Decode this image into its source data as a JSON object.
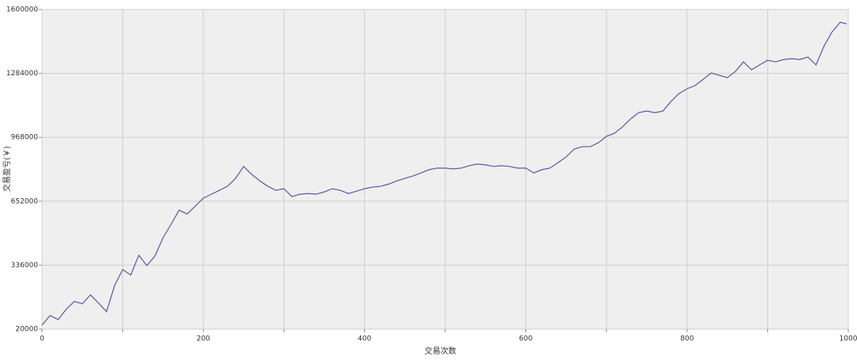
{
  "chart_data": {
    "type": "line",
    "x_label": "交易次数",
    "y_label": "交易盈亏(￥)",
    "x": [
      0,
      10,
      20,
      30,
      40,
      50,
      60,
      70,
      80,
      90,
      100,
      110,
      120,
      130,
      140,
      150,
      160,
      170,
      180,
      190,
      200,
      210,
      220,
      230,
      240,
      250,
      260,
      270,
      280,
      290,
      300,
      310,
      320,
      330,
      340,
      350,
      360,
      370,
      380,
      390,
      400,
      410,
      420,
      430,
      440,
      450,
      460,
      470,
      480,
      490,
      500,
      510,
      520,
      530,
      540,
      550,
      560,
      570,
      580,
      590,
      600,
      610,
      620,
      630,
      640,
      650,
      660,
      670,
      680,
      690,
      700,
      710,
      720,
      730,
      740,
      750,
      760,
      770,
      780,
      790,
      800,
      810,
      820,
      830,
      840,
      850,
      860,
      870,
      880,
      890,
      900,
      910,
      920,
      930,
      940,
      950,
      960,
      970,
      980,
      990,
      998
    ],
    "series": [
      {
        "color": "#5a58a6",
        "values": [
          40000,
          87000,
          67000,
          118000,
          157000,
          145000,
          189000,
          149000,
          106000,
          236000,
          314000,
          287000,
          385000,
          334000,
          381000,
          471000,
          538000,
          608000,
          589000,
          628000,
          667000,
          687000,
          706000,
          726000,
          765000,
          824000,
          785000,
          753000,
          726000,
          706000,
          714000,
          675000,
          687000,
          690000,
          687000,
          698000,
          714000,
          706000,
          690000,
          702000,
          714000,
          722000,
          726000,
          737000,
          753000,
          765000,
          777000,
          792000,
          808000,
          816000,
          816000,
          812000,
          816000,
          828000,
          836000,
          832000,
          824000,
          828000,
          824000,
          816000,
          816000,
          792000,
          808000,
          816000,
          843000,
          871000,
          910000,
          922000,
          922000,
          941000,
          973000,
          988000,
          1020000,
          1059000,
          1090000,
          1098000,
          1090000,
          1098000,
          1145000,
          1184000,
          1208000,
          1224000,
          1255000,
          1286000,
          1275000,
          1263000,
          1294000,
          1341000,
          1302000,
          1326000,
          1349000,
          1341000,
          1353000,
          1357000,
          1353000,
          1365000,
          1326000,
          1420000,
          1490000,
          1537000,
          1529000
        ]
      }
    ],
    "xlim": [
      0,
      1000
    ],
    "xticks": [
      0,
      200,
      400,
      600,
      800,
      1000
    ],
    "x_minor_grid": [
      100,
      300,
      500,
      700,
      900
    ],
    "ylim": [
      20000,
      1600000
    ],
    "yticks": [
      20000,
      336000,
      652000,
      968000,
      1284000,
      1600000
    ],
    "grid": true,
    "plot_background": "#efefef"
  }
}
